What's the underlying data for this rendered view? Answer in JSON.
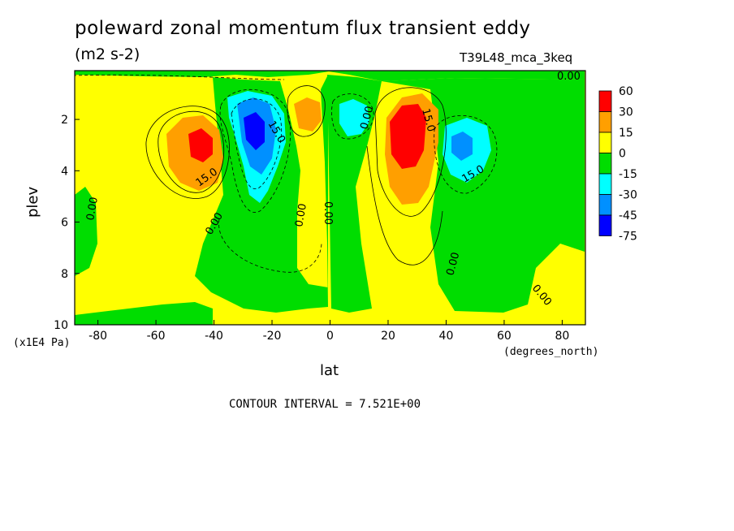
{
  "chart_data": {
    "type": "heatmap",
    "title": "poleward zonal momentum flux transient eddy",
    "subtitle": "(m2 s-2)",
    "run_label": "T39L48_mca_3keq",
    "xlabel": "lat",
    "xunit": "(degrees_north)",
    "ylabel": "plev",
    "yunit": "(x1E4 Pa)",
    "xlim": [
      -88,
      88
    ],
    "ylim": [
      10,
      0.1
    ],
    "x_ticks": [
      "-80",
      "-60",
      "-40",
      "-20",
      "0",
      "20",
      "40",
      "60",
      "80"
    ],
    "y_ticks": [
      "2",
      "4",
      "6",
      "8",
      "10"
    ],
    "contour_interval": "CONTOUR INTERVAL = 7.521E+00",
    "contour_labels": [
      "0.00",
      "15.0",
      "0.00",
      "15.0",
      "0.00",
      "0.00",
      "0.00",
      "0.00",
      "15.0",
      "15.0",
      "0.00",
      "0.00",
      "0.00"
    ],
    "colorbar": {
      "levels": [
        "60",
        "30",
        "15",
        "0",
        "-15",
        "-30",
        "-45",
        "-75"
      ],
      "colors": [
        "#ff0000",
        "#ff9f00",
        "#ffff00",
        "#00dd00",
        "#00ffff",
        "#0090ff",
        "#0000ff"
      ]
    },
    "features": [
      {
        "type": "max",
        "lat": -45,
        "plev": 3.0,
        "value": 45
      },
      {
        "type": "min",
        "lat": -27,
        "plev": 2.5,
        "value": -55
      },
      {
        "type": "max",
        "lat": -8,
        "plev": 1.8,
        "value": 20
      },
      {
        "type": "min",
        "lat": 7,
        "plev": 2.0,
        "value": -20
      },
      {
        "type": "max",
        "lat": 26,
        "plev": 2.8,
        "value": 58
      },
      {
        "type": "min",
        "lat": 45,
        "plev": 3.0,
        "value": -38
      }
    ]
  }
}
